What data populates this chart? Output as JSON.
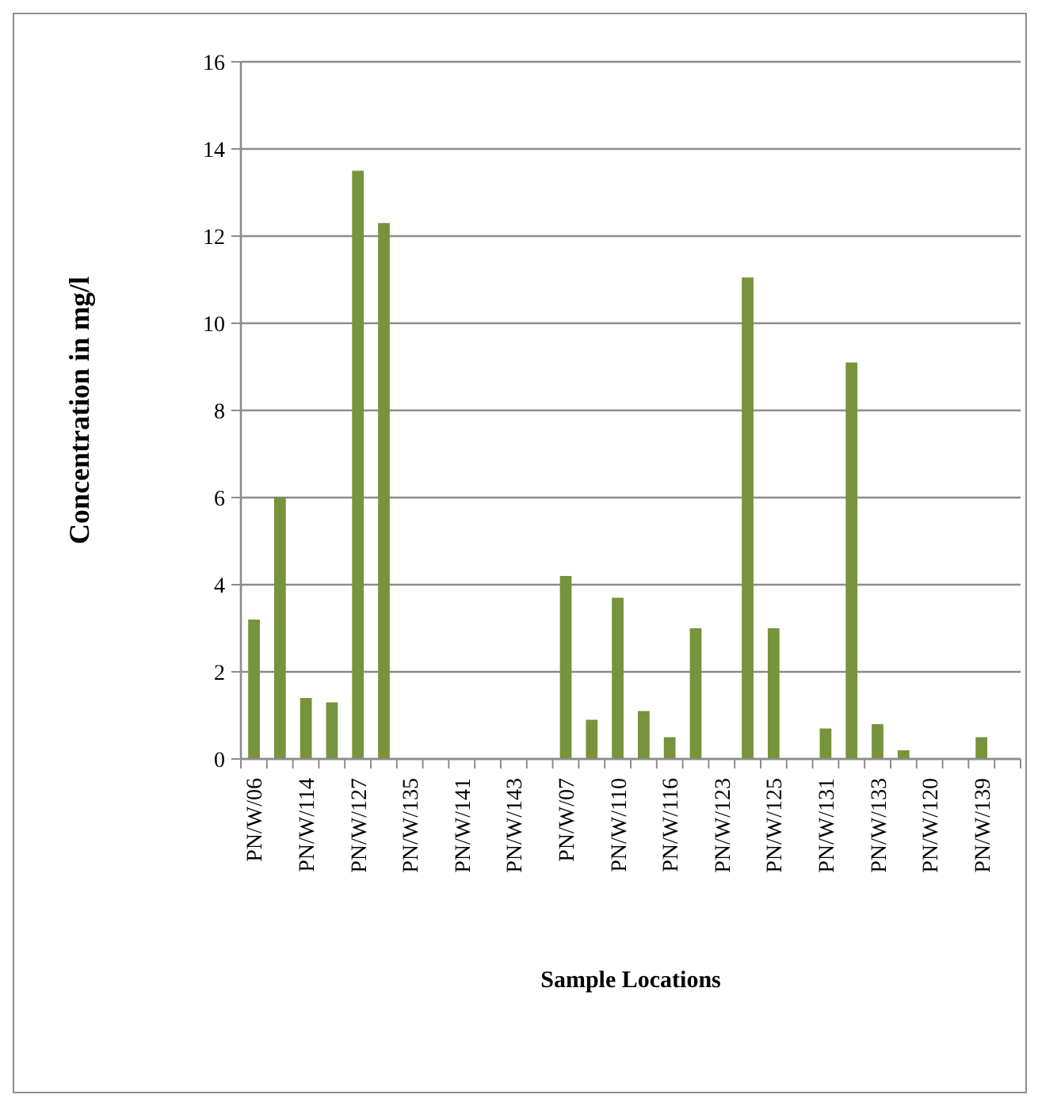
{
  "chart_data": {
    "type": "bar",
    "xlabel": "Sample Locations",
    "ylabel": "Concentration in mg/l",
    "categories": [
      "PN/W/06",
      null,
      "PN/W/114",
      null,
      "PN/W/127",
      null,
      "PN/W/135",
      null,
      "PN/W/141",
      null,
      "PN/W/143",
      null,
      "PN/W/07",
      null,
      "PN/W/110",
      null,
      "PN/W/116",
      null,
      "PN/W/123",
      null,
      "PN/W/125",
      null,
      "PN/W/131",
      null,
      "PN/W/133",
      null,
      "PN/W/120",
      null,
      "PN/W/139",
      null
    ],
    "values": [
      3.2,
      6.0,
      1.4,
      1.3,
      13.5,
      12.3,
      0,
      0,
      0,
      0,
      0,
      0,
      4.2,
      0.9,
      3.7,
      1.1,
      0.5,
      3.0,
      0,
      11.05,
      3.0,
      0,
      0.7,
      9.1,
      0.8,
      0.2,
      0,
      0,
      0.5,
      0
    ],
    "color": "#77933c",
    "ylim": [
      0,
      16
    ],
    "yticks": [
      0,
      2,
      4,
      6,
      8,
      10,
      12,
      14,
      16
    ],
    "grid": "y"
  }
}
